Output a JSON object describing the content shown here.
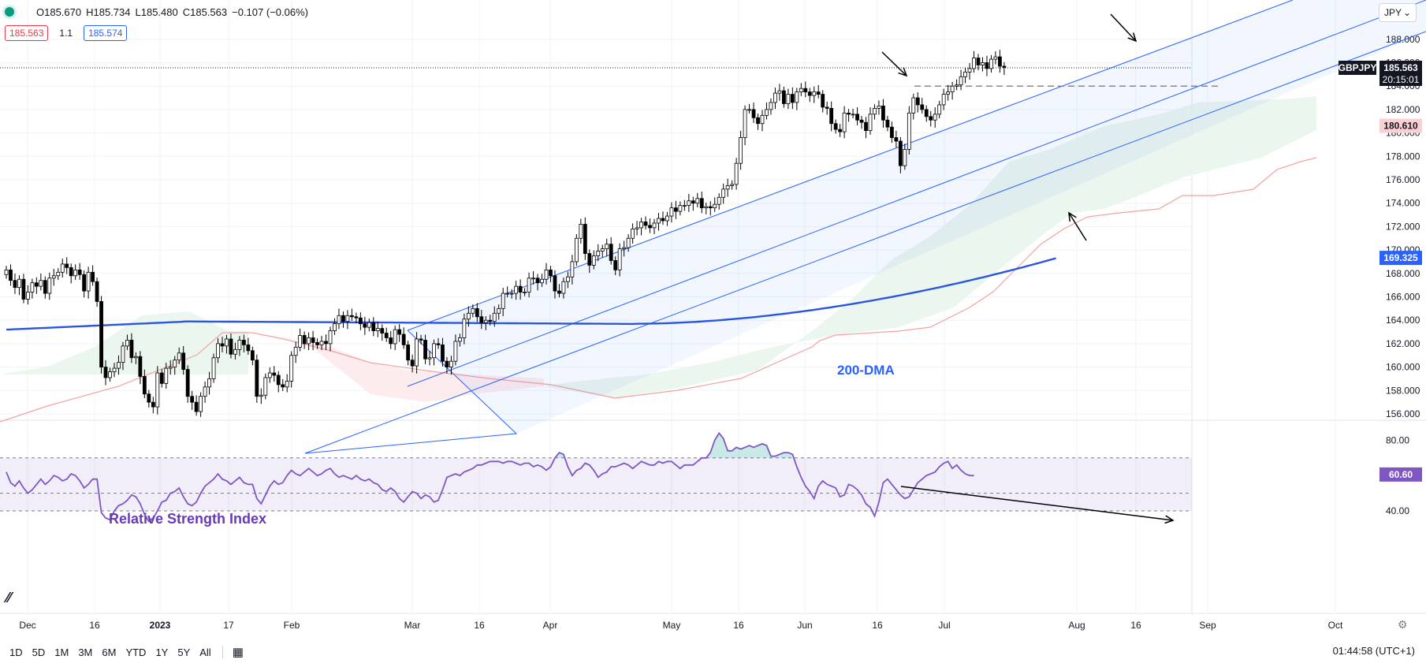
{
  "header": {
    "open": "O185.670",
    "high": "H185.734",
    "low": "L185.480",
    "close": "C185.563",
    "change": "−0.107 (−0.06%)",
    "bid": "185.563",
    "spread": "1.1",
    "ask": "185.574"
  },
  "currency": "JPY",
  "toolbar": {
    "ranges": [
      "1D",
      "5D",
      "1M",
      "3M",
      "6M",
      "YTD",
      "1Y",
      "5Y",
      "All"
    ],
    "clock": "01:44:58 (UTC+1)"
  },
  "colors": {
    "up": "#ffffff",
    "down": "#000000",
    "channel": "#2962ff",
    "dma": "#2a55e0",
    "rsi": "#7e57c2",
    "cloud_green": "#e6f4ea",
    "cloud_red": "#fde7e9",
    "kijun": "#f4a1a1"
  },
  "chart_data": [
    {
      "type": "candlestick",
      "symbol": "GBPJPY",
      "price_label": "185.563",
      "countdown": "20:15:01",
      "ylim": [
        155,
        190
      ],
      "y_ticks": [
        "188.000",
        "186.000",
        "184.000",
        "182.000",
        "180.000",
        "178.000",
        "176.000",
        "174.000",
        "172.000",
        "170.000",
        "168.000",
        "166.000",
        "164.000",
        "162.000",
        "160.000",
        "158.000",
        "156.000"
      ],
      "x_ticks": [
        "Dec",
        "16",
        "2023",
        "17",
        "Feb",
        "Mar",
        "16",
        "Apr",
        "May",
        "16",
        "Jun",
        "16",
        "Jul",
        "Aug",
        "16",
        "Sep",
        "Oct"
      ],
      "closes": [
        168.3,
        167.4,
        166.8,
        167.5,
        165.8,
        166.4,
        167.2,
        166.9,
        167.4,
        166.3,
        167.6,
        167.8,
        168.1,
        168.8,
        168.5,
        167.8,
        168.3,
        167.9,
        166.5,
        168.1,
        167.3,
        165.6,
        160.0,
        159.1,
        159.6,
        159.9,
        160.4,
        161.8,
        162.3,
        160.8,
        160.9,
        159.2,
        157.7,
        157.0,
        156.6,
        159.5,
        158.6,
        159.9,
        160.0,
        160.6,
        161.2,
        159.8,
        157.5,
        157.0,
        156.2,
        157.5,
        158.3,
        159.0,
        160.8,
        162.0,
        161.8,
        162.4,
        161.1,
        161.5,
        162.3,
        161.9,
        161.4,
        160.6,
        157.5,
        157.6,
        159.1,
        159.5,
        159.3,
        158.5,
        158.3,
        158.8,
        161.0,
        161.7,
        162.7,
        162.0,
        162.5,
        162.1,
        161.9,
        162.2,
        162.0,
        163.1,
        163.7,
        164.4,
        163.9,
        164.4,
        164.3,
        164.2,
        163.7,
        163.4,
        163.8,
        163.1,
        163.3,
        162.9,
        162.5,
        162.0,
        163.2,
        162.8,
        161.9,
        160.6,
        160.1,
        162.4,
        162.3,
        160.7,
        160.8,
        162.0,
        161.9,
        160.5,
        160.0,
        160.5,
        162.2,
        162.5,
        164.1,
        164.6,
        165.0,
        164.3,
        163.8,
        164.0,
        163.9,
        164.6,
        165.0,
        166.3,
        166.3,
        166.3,
        166.9,
        166.4,
        166.4,
        167.6,
        167.6,
        167.2,
        167.5,
        168.3,
        167.8,
        166.5,
        166.3,
        167.3,
        167.7,
        169.0,
        171.0,
        172.2,
        169.7,
        168.7,
        169.5,
        169.9,
        170.1,
        170.5,
        169.1,
        168.3,
        170.1,
        170.2,
        171.0,
        171.8,
        171.9,
        172.4,
        172.1,
        171.9,
        172.3,
        172.7,
        172.5,
        172.9,
        173.6,
        173.3,
        173.8,
        173.8,
        174.2,
        174.0,
        174.4,
        173.6,
        173.7,
        173.6,
        173.9,
        174.5,
        175.2,
        175.5,
        175.6,
        177.4,
        179.6,
        182.0,
        182.0,
        181.3,
        180.8,
        181.5,
        182.0,
        182.6,
        183.4,
        183.6,
        182.5,
        183.3,
        182.6,
        183.5,
        183.8,
        183.5,
        183.2,
        183.5,
        183.3,
        182.2,
        182.1,
        180.8,
        180.3,
        180.1,
        181.7,
        181.6,
        181.6,
        181.1,
        180.9,
        180.2,
        181.6,
        182.1,
        182.3,
        181.1,
        180.5,
        179.6,
        179.3,
        177.2,
        178.6,
        181.7,
        183.0,
        182.4,
        182.0,
        181.4,
        181.1,
        181.6,
        182.4,
        183.3,
        183.5,
        184.0,
        184.1,
        184.8,
        185.2,
        185.5,
        186.4,
        185.8,
        186.0,
        185.5,
        186.3,
        186.5,
        185.7,
        185.6
      ],
      "overlays": {
        "dma_label": "200-DMA",
        "dma_value": "169.325",
        "kijun_value": "180.610",
        "resistance_level": 184.0
      },
      "channel": {
        "main_start": 157.0,
        "main_end_upper": 188.0
      }
    },
    {
      "type": "line",
      "title": "Relative Strength Index",
      "ylim": [
        30,
        90
      ],
      "y_ticks": [
        "80.00",
        "40.00"
      ],
      "levels": [
        70,
        50,
        40
      ],
      "value_label": "60.60",
      "values": [
        62,
        56,
        54,
        57,
        53,
        50,
        52,
        55,
        58,
        55,
        57,
        60,
        59,
        57,
        58,
        61,
        60,
        57,
        53,
        55,
        58,
        58,
        39,
        36,
        35,
        40,
        43,
        44,
        46,
        49,
        48,
        44,
        38,
        34,
        36,
        40,
        45,
        46,
        50,
        51,
        53,
        48,
        44,
        43,
        45,
        50,
        54,
        56,
        58,
        61,
        58,
        57,
        55,
        57,
        59,
        56,
        55,
        55,
        47,
        44,
        49,
        54,
        57,
        55,
        56,
        60,
        63,
        61,
        60,
        62,
        64,
        62,
        60,
        61,
        63,
        64,
        61,
        59,
        60,
        59,
        58,
        60,
        58,
        57,
        58,
        56,
        55,
        52,
        51,
        53,
        51,
        47,
        45,
        48,
        51,
        50,
        47,
        49,
        48,
        45,
        46,
        52,
        59,
        60,
        61,
        60,
        62,
        63,
        64,
        66,
        66,
        67,
        68,
        68,
        68,
        67,
        68,
        68,
        67,
        66,
        67,
        67,
        65,
        66,
        65,
        63,
        65,
        70,
        73,
        72,
        65,
        60,
        63,
        64,
        67,
        66,
        63,
        59,
        61,
        62,
        65,
        65,
        66,
        67,
        66,
        64,
        66,
        68,
        67,
        66,
        66,
        68,
        67,
        68,
        68,
        66,
        64,
        66,
        66,
        66,
        68,
        70,
        70,
        73,
        80,
        84,
        81,
        74,
        74,
        76,
        75,
        76,
        77,
        76,
        77,
        78,
        77,
        71,
        71,
        72,
        73,
        73,
        72,
        65,
        59,
        54,
        51,
        47,
        54,
        57,
        55,
        54,
        53,
        48,
        49,
        55,
        54,
        52,
        49,
        44,
        42,
        37,
        45,
        56,
        58,
        55,
        52,
        49,
        47,
        48,
        52,
        56,
        58,
        60,
        61,
        62,
        65,
        67,
        68,
        64,
        66,
        63,
        61,
        60,
        60
      ]
    }
  ]
}
